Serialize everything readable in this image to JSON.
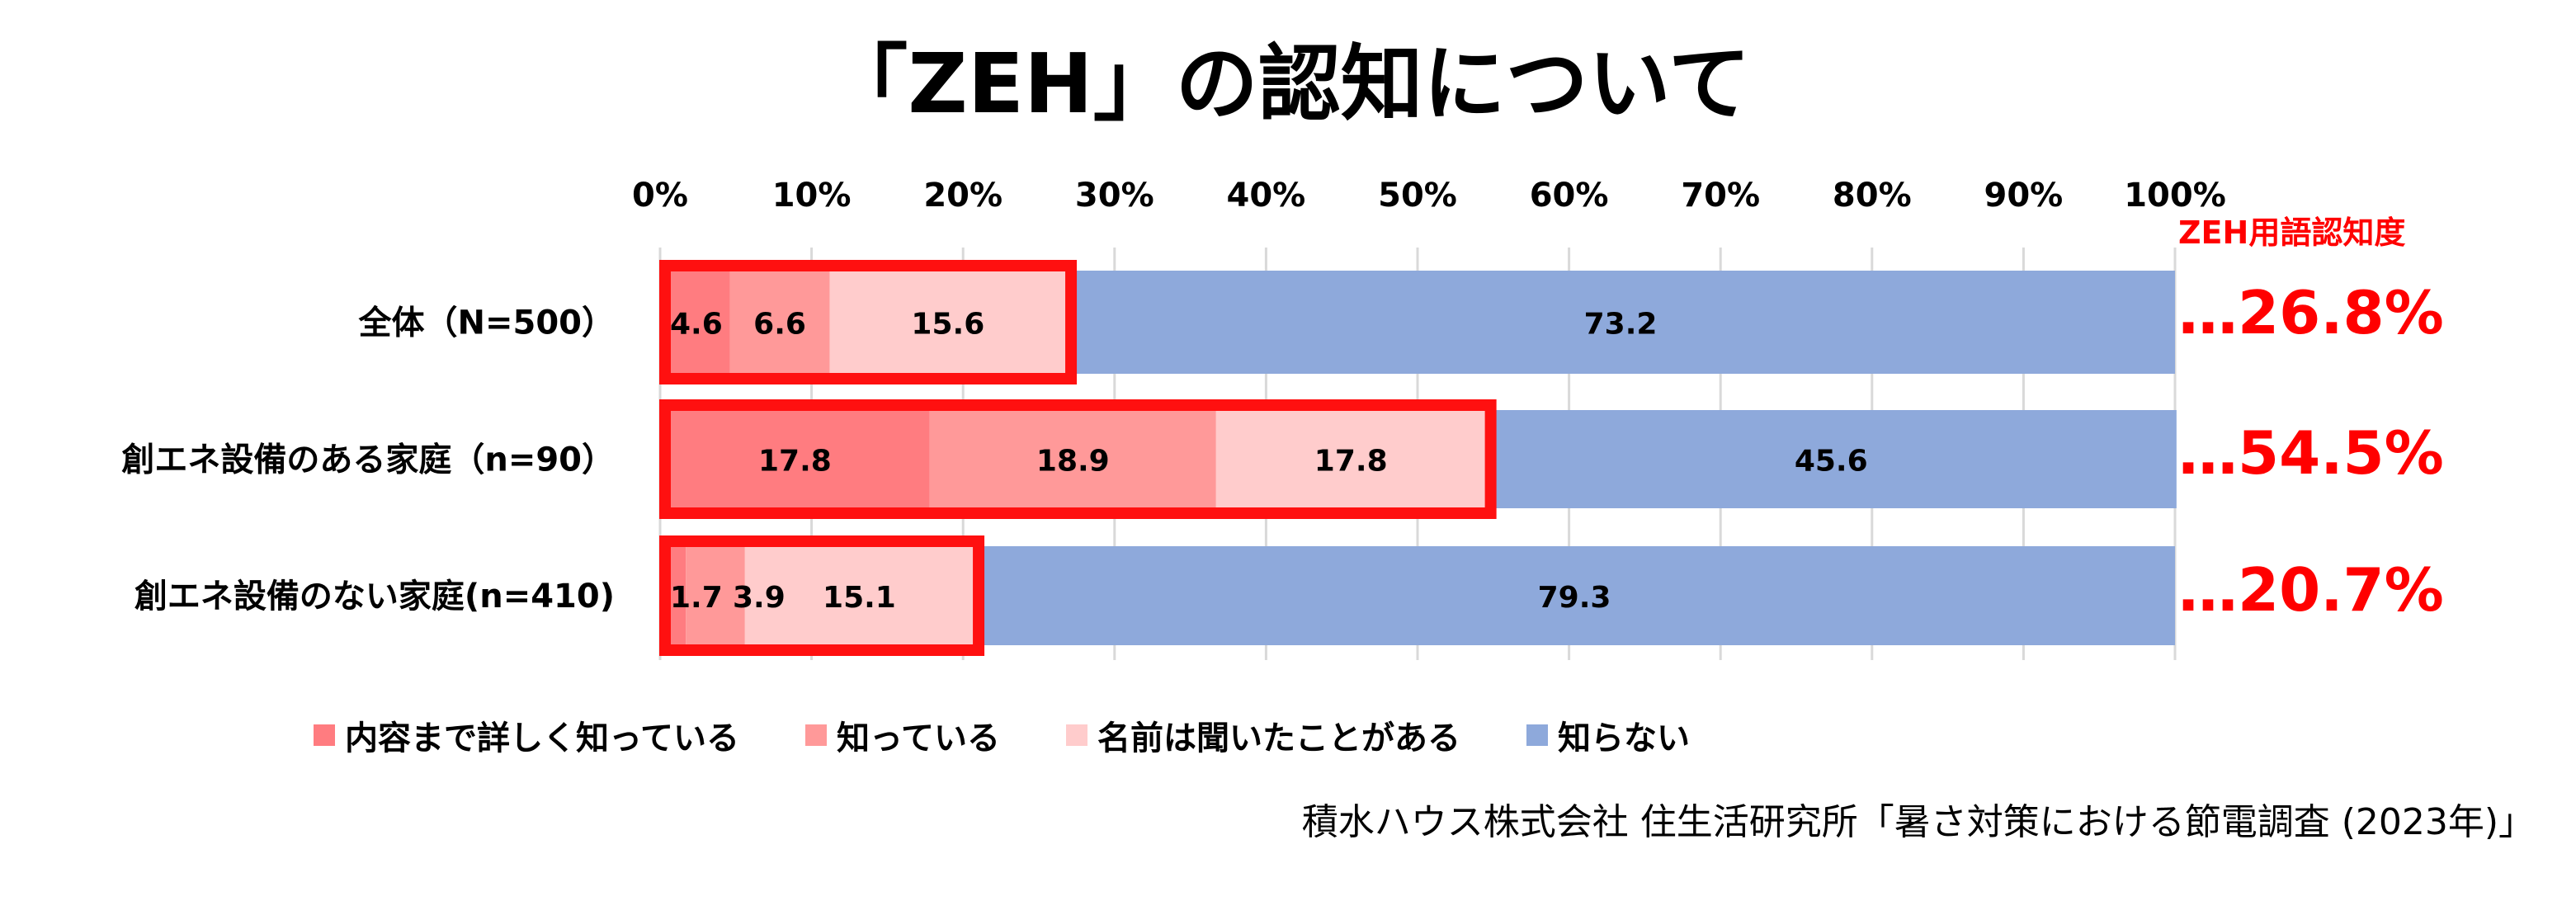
{
  "title": "「ZEH」の認知について",
  "chart_data": {
    "type": "bar",
    "orientation": "horizontal",
    "stacked": true,
    "title": "「ZEH」の認知について",
    "xlim": [
      0,
      100
    ],
    "ticks": [
      "0%",
      "10%",
      "20%",
      "30%",
      "40%",
      "50%",
      "60%",
      "70%",
      "80%",
      "90%",
      "100%"
    ],
    "categories": [
      "全体（N=500）",
      "創エネ設備のある家庭（n=90）",
      "創エネ設備のない家庭(n=410)"
    ],
    "series": [
      {
        "name": "内容まで詳しく知っている",
        "color": "#FF7C80",
        "values": [
          4.6,
          17.8,
          1.7
        ]
      },
      {
        "name": "知っている",
        "color": "#FF9999",
        "values": [
          6.6,
          18.9,
          3.9
        ]
      },
      {
        "name": "名前は聞いたことがある",
        "color": "#FFCCCC",
        "values": [
          15.6,
          17.8,
          15.1
        ]
      },
      {
        "name": "知らない",
        "color": "#8EA9DB",
        "values": [
          73.2,
          45.6,
          79.3
        ]
      }
    ],
    "highlight_color": "#FF1010",
    "awareness_header": "ZEH用語認知度",
    "awareness": [
      "…26.8%",
      "…54.5%",
      "…20.7%"
    ],
    "legend_position": "bottom",
    "grid": true
  },
  "footer": "積水ハウス株式会社 住生活研究所「暑さ対策における節電調査 (2023年)」"
}
